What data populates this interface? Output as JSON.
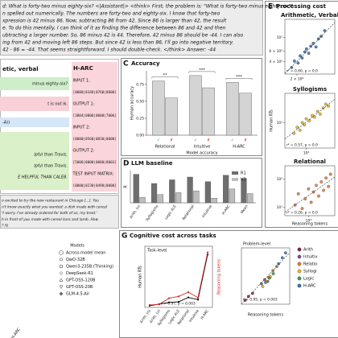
{
  "reasoning_trace": {
    "lines": [
      "d: What is forty-two minus eighty-six? <|Assistant|> <think> First, the problem is: \"What is forty-two minus eighty-six?\"",
      "n spelled out numerically.  The numbers are forty-two and eighty-six. I know that forty-two",
      "xpression is 42 minus 86.  Now, subtracting 86 from 42. Since 86 is larger than 42, the result",
      "e. To do this mentally, I can think of it as finding the difference between 86 and 42 and then",
      "ubtracting a larger number.  So, 86 minus 42 is 44. Therefore, 42 minus 86 should be -44.  I can also",
      "ing from 42 and moving left 86 steps. But since 42 is less than 86, I'll go into negative territory.",
      "42 - 86 = -44.  That seems straightforward. I should double-check. </think> Answer: -44"
    ]
  },
  "arith_card": {
    "title": "etic, verbal",
    "question": "minus eighty-six?",
    "response": "t is not ik."
  },
  "syllogism_card": {
    "lines": [
      "-A))",
      "lpful than Travis.",
      "lpful than Travis.",
      "E HELPFUL THAN CALEB."
    ]
  },
  "harc_card": {
    "title": "H-ARC",
    "lines": [
      "INPUT 1:",
      "[0000|0340|0760|0000]",
      "OUTPUT 1:",
      "[3004|0000|0000|7006]",
      "INPUT 2:",
      "[0000|0560|0830|0000]",
      "OUTPUT 2:",
      "[5006|0000|0000|8003]",
      "TEST INPUT MATRIX:",
      "[0000|0230|0490|0000]"
    ]
  },
  "restaurant_text": {
    "lines": [
      "o excited to try the new restaurant in Chicago [...]. You",
      "n't know exactly what you wanted: a dish made with cereal",
      "'t worry. I've already ordered for both of us, my treat.'",
      "h in front of you made with cereal bars and lamb. How",
      "? A)"
    ]
  },
  "processing_panel": {
    "label": "E",
    "title": "Processing cost",
    "ylabel": "Human RTs",
    "xlabel": "Reasoning tokens"
  },
  "cost_panel": {
    "label": "G",
    "title": "Cognitive cost across tasks"
  },
  "models_legend": {
    "title": "Models",
    "items": [
      "Across-model mean",
      "QwQ-32B",
      "Qwen3-235B (Thinking)",
      "DeepSeek-R1",
      "GPT-OSS-120B",
      "GPT-OSS-20B",
      "GLM-4.5-Air"
    ],
    "axis_label": "H-ARC"
  },
  "chart_data": [
    {
      "type": "bar",
      "panel": "C",
      "title": "Accuracy",
      "ylabel": "Human accuracy",
      "xlabel": "Model accuracy",
      "categories": [
        "Relational",
        "Intuitive",
        "H-ARC"
      ],
      "bar_color": "#d4d4d4",
      "series": [
        {
          "name": "✓",
          "color": "#2ca02c",
          "values": [
            0.8,
            0.88,
            0.78
          ]
        },
        {
          "name": "✗",
          "color": "#d62728",
          "values": [
            0.55,
            0.7,
            0.62
          ]
        }
      ],
      "significance": [
        "**",
        "***",
        "***"
      ],
      "ylim": [
        0,
        0.95
      ],
      "yticks": [
        {
          "value": 0,
          "label": "0.00"
        },
        {
          "value": 0.25,
          "label": "0.25"
        },
        {
          "value": 0.5,
          "label": "0.50"
        },
        {
          "value": 0.75,
          "label": "0.75"
        }
      ],
      "grid": false
    },
    {
      "type": "bar",
      "panel": "D",
      "title": "LLM baseline",
      "ylabel": "R",
      "rotate_labels": true,
      "legend": "upper right",
      "categories": [
        "Arith. (v)",
        "Syllogisms",
        "Logic ALE",
        "Relational",
        "Intuitive",
        "H-ARC",
        "Mean"
      ],
      "series": [
        {
          "name": "R1",
          "color": "#6e6e6e",
          "values": [
            0.62,
            0.42,
            0.5,
            0.56,
            0.46,
            0.6,
            0.53
          ]
        },
        {
          "name": "V3",
          "color": "#bdbdbd",
          "values": [
            0.12,
            0.18,
            0.22,
            0.26,
            0.1,
            0.3,
            0.2
          ]
        }
      ],
      "ylim": [
        0,
        0.7
      ],
      "grid": false
    },
    {
      "type": "scatter",
      "title": "Arithmetic, Verbal",
      "log": true,
      "color": "#3a6fb0",
      "annotation": "r² = 0.60, p = 0.0",
      "x": [
        160,
        180,
        210,
        230,
        250,
        280,
        300,
        330,
        360,
        400,
        450,
        500,
        560,
        650
      ],
      "values": [
        3.2,
        4.1,
        3.8,
        5.0,
        4.6,
        5.8,
        6.5,
        5.5,
        7.2,
        8.0,
        7.0,
        9.5,
        10.5,
        13
      ],
      "xlim": [
        120,
        1000
      ],
      "ylim": [
        2.5,
        20
      ],
      "xticks": [
        {
          "value": 200,
          "label": "2 × 10²"
        }
      ],
      "yticks": [
        {
          "value": 4,
          "label": "4 × 10⁰"
        },
        {
          "value": 6,
          "label": "6 × 10⁰"
        },
        {
          "value": 10,
          "label": "10¹"
        }
      ]
    },
    {
      "type": "scatter",
      "title": "Syllogisms",
      "log": true,
      "color": "#e6b422",
      "annotation": "r² = 0.57, p = 0.0",
      "x": [
        500,
        600,
        700,
        800,
        900,
        1000,
        1200,
        1400,
        1600,
        1900,
        2200,
        2600,
        3000,
        3500
      ],
      "values": [
        6,
        8,
        7,
        10,
        9,
        12,
        11,
        14,
        13,
        17,
        15,
        20,
        24,
        22
      ],
      "xlim": [
        300,
        5000
      ],
      "ylim": [
        3,
        40
      ],
      "xticks": [
        {
          "value": 1000,
          "label": "10³"
        }
      ],
      "yticks": [
        {
          "value": 10,
          "label": "10¹"
        }
      ]
    },
    {
      "type": "scatter",
      "title": "Relational",
      "log": true,
      "color": "#e07b39",
      "annotation": "r² = 0.26, p = 0.0",
      "x": [
        400,
        500,
        650,
        800,
        1000,
        1200,
        1400,
        1700,
        2000,
        2400,
        2800,
        3300,
        3900,
        4500
      ],
      "values": [
        12,
        30,
        9,
        20,
        45,
        15,
        35,
        60,
        25,
        80,
        40,
        110,
        55,
        150
      ],
      "xlim": [
        200,
        6000
      ],
      "ylim": [
        5,
        300
      ],
      "xticks": [
        {
          "value": 1000,
          "label": "10³"
        }
      ],
      "yticks": [
        {
          "value": 10,
          "label": "10¹"
        },
        {
          "value": 100,
          "label": "10²"
        }
      ]
    },
    {
      "type": "line",
      "subtitle": "Task-level",
      "annotation": "r̄ = 0.97, p = 0.003",
      "categories": [
        "Arith. (n)",
        "Arith. (v)",
        "Syllogisms",
        "Logic ALE",
        "Relational",
        "Intuitive",
        "H-ARC"
      ],
      "series": [
        {
          "name": "Human RTs",
          "color": "#000000",
          "values": [
            3,
            6,
            9,
            10,
            18,
            14,
            95
          ]
        },
        {
          "name": "Reasoning tokens",
          "color": "#d62728",
          "axis": "y2",
          "values": [
            400,
            500,
            1500,
            1800,
            2500,
            1600,
            9000
          ]
        }
      ],
      "ylim": [
        0,
        110
      ],
      "y2lim": [
        0,
        10000
      ]
    },
    {
      "type": "scatter",
      "title": "Problem-level",
      "log": true,
      "xlabel": "Reasoning tokens",
      "annotation": "r̄ = 0.95, p = 0.003",
      "series": [
        {
          "name": "Arith",
          "color": "#8c1c3a",
          "x": [
            80,
            120,
            200
          ],
          "values": [
            1.5,
            2.2,
            3
          ]
        },
        {
          "name": "Intuitiv",
          "color": "#7b4fa0",
          "x": [
            600,
            900,
            1300
          ],
          "values": [
            8,
            12,
            10
          ]
        },
        {
          "name": "Relatio",
          "color": "#e07b39",
          "x": [
            1500,
            2500,
            4000
          ],
          "values": [
            15,
            30,
            45
          ]
        },
        {
          "name": "Syllogi",
          "color": "#e6b422",
          "x": [
            700,
            1100,
            1800
          ],
          "values": [
            6,
            10,
            16
          ]
        },
        {
          "name": "Logic",
          "color": "#3d9a4a",
          "x": [
            1000,
            1600,
            2600
          ],
          "values": [
            9,
            14,
            22
          ]
        },
        {
          "name": "H-ARC",
          "color": "#3a6fb0",
          "x": [
            5000,
            8000,
            12000
          ],
          "values": [
            60,
            110,
            180
          ]
        }
      ],
      "xlim": [
        50,
        20000
      ],
      "ylim": [
        1,
        300
      ]
    }
  ]
}
